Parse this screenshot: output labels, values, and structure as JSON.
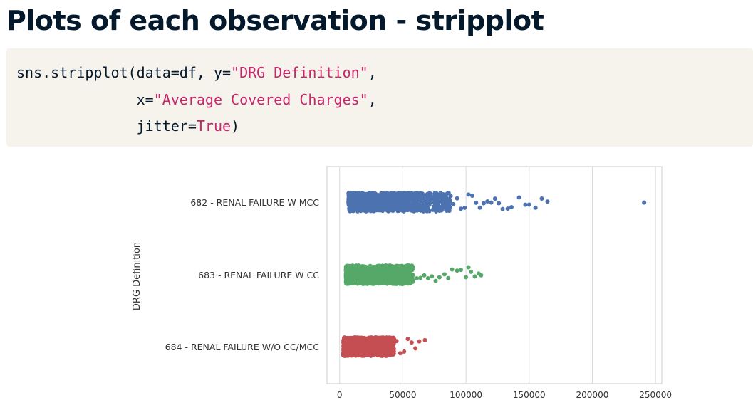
{
  "title": "Plots of each observation - stripplot",
  "code": {
    "line1_prefix": "sns.stripplot(data=df, y=",
    "line1_str": "\"DRG Definition\"",
    "line1_suffix": ",",
    "line2_indent": "              ",
    "line2_prefix": "x=",
    "line2_str": "\"Average Covered Charges\"",
    "line2_suffix": ",",
    "line3_indent": "              ",
    "line3_prefix": "jitter=",
    "line3_kw": "True",
    "line3_suffix": ")"
  },
  "chart_data": {
    "type": "scatter",
    "subtype": "stripplot",
    "title": "",
    "xlabel": "",
    "ylabel": "DRG Definition",
    "xlim": [
      -10000,
      255000
    ],
    "xticks": [
      0,
      50000,
      100000,
      150000,
      200000,
      250000
    ],
    "xtick_labels": [
      "0",
      "50000",
      "100000",
      "150000",
      "200000",
      "250000"
    ],
    "grid": "vertical",
    "categories": [
      "682 - RENAL FAILURE W MCC",
      "683 - RENAL FAILURE W CC",
      "684 - RENAL FAILURE W/O CC/MCC"
    ],
    "colors": [
      "#4c72b0",
      "#55a868",
      "#c44e52"
    ],
    "series": [
      {
        "category": "682 - RENAL FAILURE W MCC",
        "dense_range": [
          7000,
          88000
        ],
        "outliers": [
          90000,
          93000,
          96000,
          99000,
          102000,
          105000,
          108000,
          111000,
          114000,
          117000,
          120000,
          123000,
          126000,
          129000,
          133000,
          136000,
          142000,
          147000,
          150000,
          155000,
          160000,
          164500,
          241000
        ]
      },
      {
        "category": "683 - RENAL FAILURE W CC",
        "dense_range": [
          5000,
          58000
        ],
        "outliers": [
          61000,
          64000,
          67000,
          70000,
          73000,
          76000,
          79000,
          83000,
          86000,
          89000,
          93000,
          96000,
          100000,
          102000,
          104000,
          107000,
          110000,
          112000
        ]
      },
      {
        "category": "684 - RENAL FAILURE W/O CC/MCC",
        "dense_range": [
          3000,
          43000
        ],
        "outliers": [
          45000,
          48000,
          51000,
          54000,
          57000,
          60000,
          63000,
          67500
        ]
      }
    ]
  }
}
